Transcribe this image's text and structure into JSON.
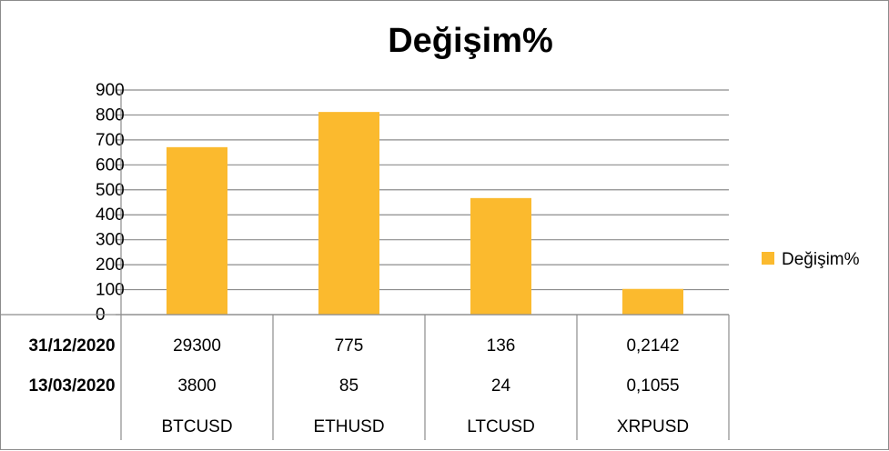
{
  "chart_data": {
    "type": "bar",
    "title": "Değişim%",
    "categories": [
      "BTCUSD",
      "ETHUSD",
      "LTCUSD",
      "XRPUSD"
    ],
    "series": [
      {
        "name": "Değişim%",
        "values": [
          671,
          812,
          467,
          103
        ],
        "color": "#FBBA2E"
      }
    ],
    "ylim": [
      0,
      900
    ],
    "yticks": [
      0,
      100,
      200,
      300,
      400,
      500,
      600,
      700,
      800,
      900
    ],
    "grid": true,
    "legend_position": "right",
    "data_table": {
      "rows": [
        {
          "label": "31/12/2020",
          "values": [
            "29300",
            "775",
            "136",
            "0,2142"
          ]
        },
        {
          "label": "13/03/2020",
          "values": [
            "3800",
            "85",
            "24",
            "0,1055"
          ]
        }
      ]
    }
  }
}
